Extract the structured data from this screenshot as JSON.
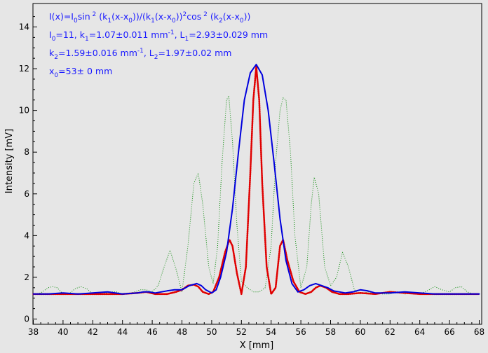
{
  "chart_data": {
    "type": "line",
    "xlabel": "X [mm]",
    "ylabel": "Intensity [mV]",
    "xlim": [
      38,
      68
    ],
    "ylim": [
      0,
      15
    ],
    "x_ticks": [
      38,
      40,
      42,
      44,
      46,
      48,
      50,
      52,
      54,
      56,
      58,
      60,
      62,
      64,
      66,
      68
    ],
    "y_ticks": [
      0,
      2,
      4,
      6,
      8,
      10,
      12,
      14
    ],
    "grid": false,
    "fit_parameters": {
      "I0": 11,
      "k1": 1.07,
      "L1": 2.93,
      "k2": 1.59,
      "L2": 1.97,
      "x0": 53,
      "baseline": 1.2
    },
    "annotations": [
      "I(x)=I0sin 2 (k1(x-x0))/(k1(x-x0))2cos 2 (k2(x-x0))",
      "I0=11,  k1=1.07±0.011 mm-1,   L1=2.93±0.029 mm",
      "k2=1.59±0.016 mm-1,   L2=1.97±0.02 mm",
      "x0=53±   0 mm"
    ],
    "series": [
      {
        "color": "#0a8a0a",
        "style": "dotted",
        "x": [
          38.0,
          38.5,
          39.0,
          39.3,
          39.6,
          40.0,
          40.4,
          40.8,
          41.2,
          41.6,
          42.0,
          42.4,
          42.8,
          43.2,
          43.6,
          44.0,
          44.4,
          44.8,
          45.2,
          45.6,
          46.0,
          46.4,
          46.8,
          47.2,
          47.6,
          48.0,
          48.4,
          48.8,
          49.1,
          49.4,
          49.8,
          50.1,
          50.4,
          50.7,
          51.0,
          51.15,
          51.4,
          51.7,
          52.0,
          52.4,
          52.8,
          53.2,
          53.6,
          54.0,
          54.3,
          54.6,
          54.8,
          55.0,
          55.3,
          55.6,
          56.0,
          56.4,
          56.7,
          56.9,
          57.2,
          57.6,
          58.0,
          58.4,
          58.8,
          59.2,
          59.6,
          60.0,
          60.5,
          61.0,
          61.5,
          62.0,
          62.5,
          63.0,
          63.5,
          64.0,
          64.5,
          65.0,
          65.5,
          66.0,
          66.4,
          66.8,
          67.2,
          67.6,
          68.0
        ],
        "y": [
          1.2,
          1.25,
          1.5,
          1.55,
          1.5,
          1.2,
          1.2,
          1.45,
          1.55,
          1.45,
          1.2,
          1.2,
          1.25,
          1.3,
          1.3,
          1.2,
          1.2,
          1.3,
          1.4,
          1.4,
          1.3,
          1.6,
          2.5,
          3.3,
          2.4,
          1.3,
          3.5,
          6.5,
          7.0,
          5.5,
          2.5,
          1.7,
          3.5,
          7.5,
          10.5,
          10.7,
          8.5,
          4.5,
          1.8,
          1.5,
          1.3,
          1.3,
          1.5,
          3.5,
          7.5,
          10.0,
          10.6,
          10.5,
          8.0,
          4.0,
          1.5,
          2.5,
          5.5,
          6.8,
          6.0,
          2.5,
          1.6,
          2.0,
          3.2,
          2.5,
          1.4,
          1.2,
          1.3,
          1.25,
          1.2,
          1.2,
          1.3,
          1.2,
          1.25,
          1.2,
          1.35,
          1.55,
          1.4,
          1.3,
          1.5,
          1.55,
          1.3,
          1.2,
          1.2
        ]
      },
      {
        "color": "#e00000",
        "style": "dotted-thick",
        "x": [
          38.0,
          40.0,
          42.0,
          44.0,
          45.0,
          45.6,
          46.2,
          47.0,
          47.6,
          48.0,
          48.4,
          48.8,
          49.1,
          49.4,
          49.8,
          50.1,
          50.5,
          50.9,
          51.2,
          51.4,
          51.7,
          52.0,
          52.3,
          52.6,
          52.8,
          53.0,
          53.2,
          53.4,
          53.7,
          54.0,
          54.3,
          54.6,
          54.8,
          55.1,
          55.5,
          55.9,
          56.3,
          56.7,
          57.0,
          57.3,
          57.7,
          58.1,
          58.6,
          59.2,
          60.0,
          61.0,
          62.0,
          64.0,
          66.0,
          68.0
        ],
        "y": [
          1.2,
          1.2,
          1.2,
          1.2,
          1.25,
          1.3,
          1.2,
          1.2,
          1.3,
          1.4,
          1.6,
          1.65,
          1.55,
          1.3,
          1.2,
          1.3,
          2.0,
          3.2,
          3.8,
          3.5,
          2.2,
          1.2,
          2.5,
          7.0,
          10.5,
          12.1,
          10.5,
          6.5,
          2.5,
          1.2,
          1.5,
          3.5,
          3.8,
          2.8,
          1.8,
          1.3,
          1.2,
          1.3,
          1.5,
          1.6,
          1.5,
          1.3,
          1.2,
          1.2,
          1.25,
          1.2,
          1.3,
          1.2,
          1.2,
          1.2
        ]
      },
      {
        "color": "#0000dd",
        "style": "solid",
        "x": [
          38.0,
          39.0,
          40.0,
          41.0,
          42.0,
          43.0,
          44.0,
          45.0,
          45.4,
          45.8,
          46.2,
          46.6,
          47.0,
          47.5,
          48.0,
          48.5,
          49.0,
          49.3,
          49.6,
          50.0,
          50.3,
          50.6,
          51.0,
          51.4,
          51.8,
          52.2,
          52.6,
          53.0,
          53.4,
          53.8,
          54.2,
          54.6,
          55.0,
          55.4,
          55.8,
          56.2,
          56.6,
          57.0,
          57.4,
          57.8,
          58.2,
          58.6,
          59.0,
          59.5,
          60.0,
          60.5,
          61.0,
          62.0,
          63.0,
          64.0,
          65.0,
          66.0,
          67.0,
          68.0
        ],
        "y": [
          1.2,
          1.2,
          1.25,
          1.2,
          1.25,
          1.3,
          1.2,
          1.25,
          1.3,
          1.3,
          1.25,
          1.3,
          1.35,
          1.4,
          1.4,
          1.6,
          1.7,
          1.6,
          1.4,
          1.25,
          1.4,
          2.0,
          3.2,
          5.3,
          8.0,
          10.5,
          11.8,
          12.2,
          11.7,
          10.0,
          7.5,
          4.8,
          2.8,
          1.7,
          1.3,
          1.4,
          1.6,
          1.7,
          1.6,
          1.5,
          1.35,
          1.3,
          1.25,
          1.3,
          1.4,
          1.35,
          1.25,
          1.25,
          1.3,
          1.25,
          1.2,
          1.2,
          1.2,
          1.2
        ]
      }
    ]
  }
}
